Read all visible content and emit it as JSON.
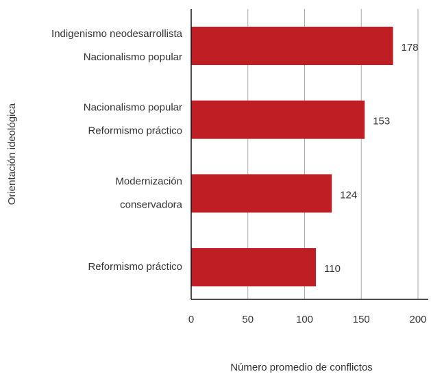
{
  "chart_data": {
    "type": "bar",
    "orientation": "horizontal",
    "categories": [
      [
        "Indigenismo neodesarrollista",
        "Nacionalismo popular"
      ],
      [
        "Nacionalismo popular",
        "Reformismo práctico"
      ],
      [
        "Modernización",
        "conservadora"
      ],
      [
        "Reformismo práctico"
      ]
    ],
    "values": [
      178,
      153,
      124,
      110
    ],
    "color": "#be1e24",
    "xlabel": "Número promedio de conflictos",
    "ylabel": "Orientación ideológica",
    "xlim": [
      0,
      200
    ],
    "xticks": [
      0,
      50,
      100,
      150,
      200
    ],
    "grid": true
  }
}
